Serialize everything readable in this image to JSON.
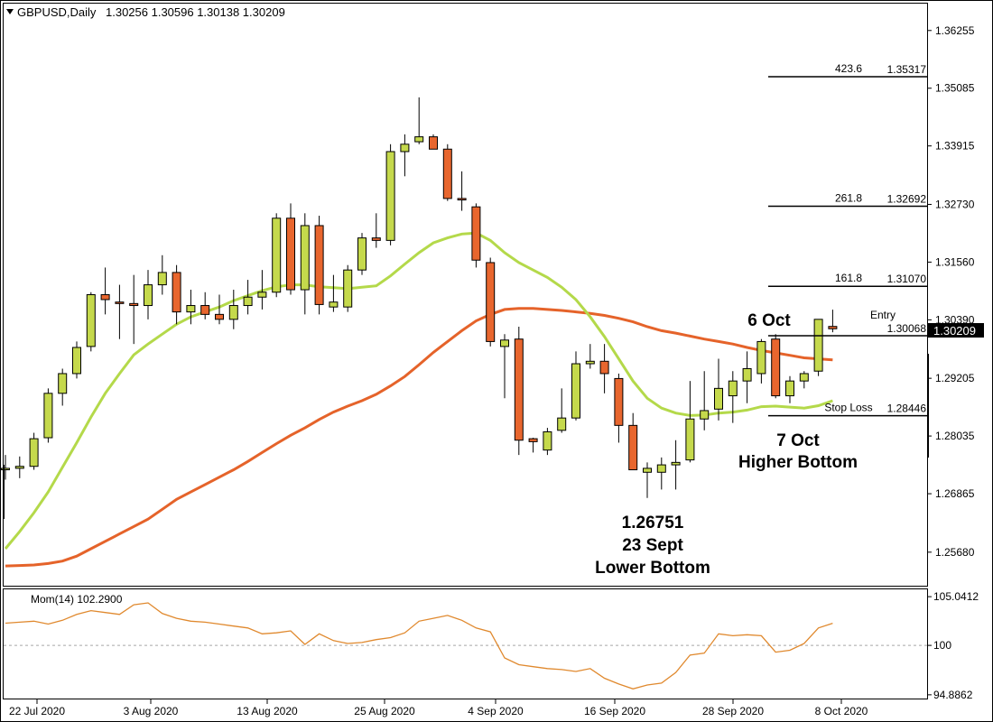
{
  "header": {
    "symbol": "GBPUSD,Daily",
    "ohlc": "1.30256 1.30596 1.30138 1.30209"
  },
  "indicator_label": "Mom(14) 102.2900",
  "current_price_label": "1.30209",
  "annotations": {
    "oct6": "6 Oct",
    "low_price": "1.26751",
    "low_date": "23 Sept",
    "low_label": "Lower Bottom",
    "oct7": "7 Oct",
    "oct7_label": "Higher Bottom"
  },
  "levels": [
    {
      "name": "423.6",
      "value_label": "1.35317",
      "price": 1.35317
    },
    {
      "name": "261.8",
      "value_label": "1.32692",
      "price": 1.32692
    },
    {
      "name": "161.8",
      "value_label": "1.31070",
      "price": 1.3107
    },
    {
      "name": "Entry",
      "value_label": "1.30068",
      "price": 1.30068
    },
    {
      "name": "Stop Loss",
      "value_label": "1.28446",
      "price": 1.28446
    }
  ],
  "colors": {
    "bull": "#c5d94c",
    "bear": "#e8662e",
    "ma_fast": "#b4d94a",
    "ma_slow": "#e5632a",
    "momentum": "#e0892e"
  },
  "chart_data": [
    {
      "type": "candlestick",
      "title": "GBPUSD,Daily",
      "ylim": [
        1.25,
        1.368
      ],
      "y_ticks": [
        "1.36255",
        "1.35085",
        "1.33915",
        "1.32730",
        "1.31560",
        "1.30390",
        "1.29205",
        "1.28035",
        "1.26865",
        "1.25680"
      ],
      "x_ticks": [
        "22 Jul 2020",
        "3 Aug 2020",
        "13 Aug 2020",
        "25 Aug 2020",
        "4 Sep 2020",
        "16 Sep 2020",
        "28 Sep 2020",
        "8 Oct 2020"
      ],
      "candles": [
        {
          "o": 1.2735,
          "h": 1.2765,
          "l": 1.2715,
          "c": 1.2738
        },
        {
          "o": 1.2738,
          "h": 1.2762,
          "l": 1.2718,
          "c": 1.2742
        },
        {
          "o": 1.2742,
          "h": 1.281,
          "l": 1.2735,
          "c": 1.2798
        },
        {
          "o": 1.28,
          "h": 1.29,
          "l": 1.279,
          "c": 1.289
        },
        {
          "o": 1.289,
          "h": 1.294,
          "l": 1.2865,
          "c": 1.293
        },
        {
          "o": 1.293,
          "h": 1.2995,
          "l": 1.292,
          "c": 1.2983
        },
        {
          "o": 1.2985,
          "h": 1.3095,
          "l": 1.2975,
          "c": 1.309
        },
        {
          "o": 1.309,
          "h": 1.3145,
          "l": 1.305,
          "c": 1.308
        },
        {
          "o": 1.3075,
          "h": 1.311,
          "l": 1.3,
          "c": 1.3072
        },
        {
          "o": 1.3072,
          "h": 1.313,
          "l": 1.299,
          "c": 1.3068
        },
        {
          "o": 1.3068,
          "h": 1.314,
          "l": 1.304,
          "c": 1.311
        },
        {
          "o": 1.311,
          "h": 1.317,
          "l": 1.309,
          "c": 1.3135
        },
        {
          "o": 1.3135,
          "h": 1.315,
          "l": 1.303,
          "c": 1.3055
        },
        {
          "o": 1.3055,
          "h": 1.31,
          "l": 1.303,
          "c": 1.3068
        },
        {
          "o": 1.3068,
          "h": 1.3095,
          "l": 1.304,
          "c": 1.305
        },
        {
          "o": 1.305,
          "h": 1.309,
          "l": 1.303,
          "c": 1.304
        },
        {
          "o": 1.304,
          "h": 1.31,
          "l": 1.302,
          "c": 1.3068
        },
        {
          "o": 1.3068,
          "h": 1.312,
          "l": 1.305,
          "c": 1.3085
        },
        {
          "o": 1.3085,
          "h": 1.314,
          "l": 1.306,
          "c": 1.3095
        },
        {
          "o": 1.3095,
          "h": 1.3255,
          "l": 1.3085,
          "c": 1.3245
        },
        {
          "o": 1.3245,
          "h": 1.3275,
          "l": 1.309,
          "c": 1.31
        },
        {
          "o": 1.31,
          "h": 1.3255,
          "l": 1.305,
          "c": 1.323
        },
        {
          "o": 1.323,
          "h": 1.325,
          "l": 1.305,
          "c": 1.307
        },
        {
          "o": 1.3065,
          "h": 1.313,
          "l": 1.3055,
          "c": 1.3075
        },
        {
          "o": 1.3065,
          "h": 1.315,
          "l": 1.3055,
          "c": 1.314
        },
        {
          "o": 1.314,
          "h": 1.3215,
          "l": 1.313,
          "c": 1.3205
        },
        {
          "o": 1.3205,
          "h": 1.3255,
          "l": 1.3185,
          "c": 1.32
        },
        {
          "o": 1.32,
          "h": 1.3395,
          "l": 1.319,
          "c": 1.338
        },
        {
          "o": 1.338,
          "h": 1.3415,
          "l": 1.333,
          "c": 1.3395
        },
        {
          "o": 1.34,
          "h": 1.349,
          "l": 1.3395,
          "c": 1.341
        },
        {
          "o": 1.341,
          "h": 1.3415,
          "l": 1.3385,
          "c": 1.3385
        },
        {
          "o": 1.3385,
          "h": 1.3395,
          "l": 1.328,
          "c": 1.3285
        },
        {
          "o": 1.3285,
          "h": 1.334,
          "l": 1.326,
          "c": 1.3282
        },
        {
          "o": 1.3268,
          "h": 1.3275,
          "l": 1.3145,
          "c": 1.316
        },
        {
          "o": 1.3155,
          "h": 1.3165,
          "l": 1.2985,
          "c": 1.2995
        },
        {
          "o": 1.2985,
          "h": 1.301,
          "l": 1.288,
          "c": 1.2998
        },
        {
          "o": 1.3,
          "h": 1.3025,
          "l": 1.2765,
          "c": 1.2795
        },
        {
          "o": 1.2798,
          "h": 1.28,
          "l": 1.277,
          "c": 1.2792
        },
        {
          "o": 1.2775,
          "h": 1.282,
          "l": 1.2765,
          "c": 1.2812
        },
        {
          "o": 1.2815,
          "h": 1.29,
          "l": 1.281,
          "c": 1.284
        },
        {
          "o": 1.284,
          "h": 1.2975,
          "l": 1.2835,
          "c": 1.295
        },
        {
          "o": 1.295,
          "h": 1.299,
          "l": 1.294,
          "c": 1.2955
        },
        {
          "o": 1.2955,
          "h": 1.299,
          "l": 1.289,
          "c": 1.293
        },
        {
          "o": 1.292,
          "h": 1.293,
          "l": 1.279,
          "c": 1.2825
        },
        {
          "o": 1.2825,
          "h": 1.285,
          "l": 1.274,
          "c": 1.2735
        },
        {
          "o": 1.273,
          "h": 1.275,
          "l": 1.2678,
          "c": 1.2738
        },
        {
          "o": 1.273,
          "h": 1.276,
          "l": 1.2695,
          "c": 1.2745
        },
        {
          "o": 1.2745,
          "h": 1.2795,
          "l": 1.2695,
          "c": 1.275
        },
        {
          "o": 1.2755,
          "h": 1.2915,
          "l": 1.275,
          "c": 1.2838
        },
        {
          "o": 1.2838,
          "h": 1.2935,
          "l": 1.2815,
          "c": 1.2855
        },
        {
          "o": 1.2858,
          "h": 1.296,
          "l": 1.2835,
          "c": 1.29
        },
        {
          "o": 1.2885,
          "h": 1.2935,
          "l": 1.283,
          "c": 1.2915
        },
        {
          "o": 1.2915,
          "h": 1.2975,
          "l": 1.287,
          "c": 1.294
        },
        {
          "o": 1.293,
          "h": 1.3,
          "l": 1.291,
          "c": 1.2995
        },
        {
          "o": 1.3,
          "h": 1.301,
          "l": 1.288,
          "c": 1.2885
        },
        {
          "o": 1.2885,
          "h": 1.2925,
          "l": 1.287,
          "c": 1.2915
        },
        {
          "o": 1.2915,
          "h": 1.2935,
          "l": 1.29,
          "c": 1.293
        },
        {
          "o": 1.2935,
          "h": 1.304,
          "l": 1.2925,
          "c": 1.304
        },
        {
          "o": 1.30256,
          "h": 1.30596,
          "l": 1.30138,
          "c": 1.30209
        }
      ],
      "ma_fast": [
        1.2575,
        1.261,
        1.2648,
        1.269,
        1.274,
        1.279,
        1.2842,
        1.289,
        1.293,
        1.2968,
        1.299,
        1.301,
        1.303,
        1.3045,
        1.3055,
        1.3065,
        1.3078,
        1.3088,
        1.3098,
        1.3106,
        1.311,
        1.311,
        1.3106,
        1.3104,
        1.3102,
        1.3105,
        1.3108,
        1.3128,
        1.3152,
        1.3175,
        1.3195,
        1.3205,
        1.3213,
        1.3215,
        1.32,
        1.3175,
        1.3155,
        1.314,
        1.3125,
        1.3105,
        1.308,
        1.3045,
        1.3005,
        1.296,
        1.2915,
        1.288,
        1.286,
        1.285,
        1.2845,
        1.2846,
        1.285,
        1.2852,
        1.2856,
        1.2863,
        1.2864,
        1.2862,
        1.286,
        1.2865,
        1.2875
      ],
      "ma_slow": [
        1.254,
        1.2541,
        1.2542,
        1.2545,
        1.255,
        1.256,
        1.2575,
        1.259,
        1.2605,
        1.262,
        1.2635,
        1.2655,
        1.2675,
        1.269,
        1.2705,
        1.272,
        1.2735,
        1.2752,
        1.277,
        1.2788,
        1.2805,
        1.282,
        1.2837,
        1.2852,
        1.2864,
        1.2875,
        1.2888,
        1.2905,
        1.2924,
        1.2948,
        1.2973,
        1.2995,
        1.3017,
        1.3037,
        1.305,
        1.306,
        1.3062,
        1.3062,
        1.306,
        1.3058,
        1.3055,
        1.3052,
        1.3048,
        1.3042,
        1.3035,
        1.3025,
        1.3017,
        1.3012,
        1.3006,
        1.3,
        1.2995,
        1.299,
        1.2983,
        1.2977,
        1.2972,
        1.2967,
        1.2962,
        1.296,
        1.2958
      ]
    },
    {
      "type": "line",
      "title": "Mom(14) 102.2900",
      "ylim": [
        94.5,
        105.8
      ],
      "y_ticks": [
        "105.0412",
        "100",
        "94.8862"
      ],
      "reference_line": 100,
      "series": [
        {
          "name": "Mom(14)",
          "values": [
            102.3,
            102.4,
            102.5,
            102.2,
            102.6,
            103.2,
            103.6,
            103.4,
            103.2,
            104.2,
            104.4,
            103.3,
            102.8,
            102.5,
            102.4,
            102.2,
            102.0,
            101.8,
            101.2,
            101.3,
            101.5,
            100.1,
            101.2,
            100.5,
            100.2,
            100.3,
            100.6,
            100.8,
            101.3,
            102.5,
            102.8,
            103.1,
            102.6,
            101.8,
            101.4,
            98.7,
            98.0,
            97.8,
            97.6,
            97.5,
            97.3,
            97.6,
            96.6,
            96.0,
            95.5,
            95.9,
            96.1,
            97.2,
            99.0,
            99.2,
            101.2,
            101.0,
            101.1,
            101.0,
            99.3,
            99.5,
            100.2,
            101.8,
            102.29
          ]
        }
      ]
    }
  ]
}
